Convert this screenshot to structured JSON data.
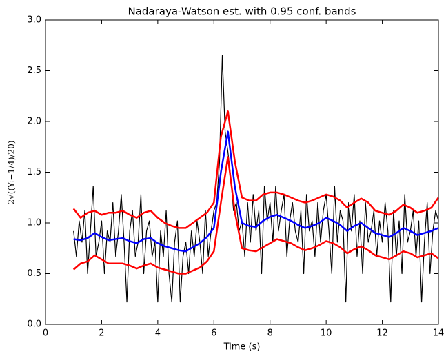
{
  "chart_data": {
    "type": "line",
    "title": "Nadaraya-Watson est. with 0.95 conf. bands",
    "x_label": "Time (s)",
    "y_label": "2√((Yᵢ+1/4)/20)",
    "xlim": [
      0,
      14
    ],
    "ylim": [
      0,
      3
    ],
    "xticks": [
      0,
      2,
      4,
      6,
      8,
      10,
      12,
      14
    ],
    "yticks": [
      {
        "value": 0,
        "label": "0.0"
      },
      {
        "value": 0.5,
        "label": "0.5"
      },
      {
        "value": 1,
        "label": "1.0"
      },
      {
        "value": 1.5,
        "label": "1.5"
      },
      {
        "value": 2,
        "label": "2.0"
      },
      {
        "value": 2.5,
        "label": "2.5"
      },
      {
        "value": 3,
        "label": "3.0"
      }
    ],
    "series": [
      {
        "color": "#000000",
        "width": 1.2,
        "x": [
          1,
          1.1,
          1.2,
          1.3,
          1.4,
          1.5,
          1.6,
          1.7,
          1.8,
          1.9,
          2,
          2.1,
          2.2,
          2.3,
          2.4,
          2.5,
          2.6,
          2.7,
          2.8,
          2.9,
          3,
          3.1,
          3.2,
          3.3,
          3.4,
          3.5,
          3.6,
          3.7,
          3.8,
          3.9,
          4,
          4.1,
          4.2,
          4.3,
          4.4,
          4.5,
          4.6,
          4.7,
          4.8,
          4.9,
          5,
          5.1,
          5.2,
          5.3,
          5.4,
          5.5,
          5.6,
          5.7,
          5.8,
          5.9,
          6,
          6.1,
          6.2,
          6.3,
          6.4,
          6.5,
          6.6,
          6.7,
          6.8,
          6.9,
          7,
          7.1,
          7.2,
          7.3,
          7.4,
          7.5,
          7.6,
          7.7,
          7.8,
          7.9,
          8,
          8.1,
          8.2,
          8.3,
          8.4,
          8.5,
          8.6,
          8.7,
          8.8,
          8.9,
          9,
          9.1,
          9.2,
          9.3,
          9.4,
          9.5,
          9.6,
          9.7,
          9.8,
          9.9,
          10,
          10.1,
          10.2,
          10.3,
          10.4,
          10.5,
          10.6,
          10.7,
          10.8,
          10.9,
          11,
          11.1,
          11.2,
          11.3,
          11.4,
          11.5,
          11.6,
          11.7,
          11.8,
          11.9,
          12,
          12.1,
          12.2,
          12.3,
          12.4,
          12.5,
          12.6,
          12.7,
          12.8,
          12.9,
          13,
          13.1,
          13.2,
          13.3,
          13.4,
          13.5,
          13.6,
          13.7,
          13.8,
          13.9,
          14
        ],
        "values": [
          0.92,
          0.67,
          1.02,
          0.81,
          1.12,
          0.5,
          0.92,
          1.36,
          0.67,
          0.81,
          1.02,
          0.5,
          0.92,
          0.81,
          1.2,
          0.67,
          0.92,
          1.28,
          0.81,
          0.22,
          0.92,
          1.12,
          0.67,
          0.81,
          1.28,
          0.5,
          0.92,
          1.02,
          0.67,
          0.81,
          0.22,
          0.92,
          0.67,
          1.12,
          0.5,
          0.22,
          0.81,
          1.02,
          0.22,
          0.67,
          0.81,
          0.5,
          0.92,
          0.67,
          1.02,
          0.81,
          0.5,
          1.12,
          0.67,
          0.92,
          1.12,
          1.2,
          1.6,
          2.65,
          1.9,
          1.7,
          1.45,
          1.12,
          1.2,
          0.92,
          1.02,
          0.67,
          1.2,
          0.81,
          1.28,
          0.92,
          1.12,
          0.5,
          1.36,
          1.02,
          1.2,
          0.81,
          1.36,
          0.92,
          1.12,
          1.28,
          0.67,
          1.02,
          1.2,
          0.92,
          0.81,
          1.12,
          0.5,
          1.28,
          0.92,
          1.02,
          0.67,
          1.2,
          0.81,
          1.12,
          1.28,
          0.92,
          0.5,
          1.36,
          0.81,
          1.12,
          1.02,
          0.22,
          1.2,
          0.92,
          1.28,
          0.67,
          1.02,
          0.5,
          1.2,
          0.81,
          0.92,
          1.12,
          0.67,
          1.02,
          0.81,
          1.2,
          0.92,
          0.22,
          1.12,
          0.67,
          1.02,
          0.5,
          1.28,
          0.81,
          0.92,
          1.12,
          0.67,
          1.02,
          0.22,
          0.81,
          1.2,
          0.5,
          0.92,
          1.12,
          1.02
        ]
      },
      {
        "color": "#0000ff",
        "width": 2.5,
        "x": [
          1,
          1.25,
          1.5,
          1.75,
          2,
          2.25,
          2.5,
          2.75,
          3,
          3.25,
          3.5,
          3.75,
          4,
          4.25,
          4.5,
          4.75,
          5,
          5.25,
          5.5,
          5.75,
          6,
          6.25,
          6.5,
          6.75,
          7,
          7.25,
          7.5,
          7.75,
          8,
          8.25,
          8.5,
          8.75,
          9,
          9.25,
          9.5,
          9.75,
          10,
          10.25,
          10.5,
          10.75,
          11,
          11.25,
          11.5,
          11.75,
          12,
          12.25,
          12.5,
          12.75,
          13,
          13.25,
          13.5,
          13.75,
          14
        ],
        "values": [
          0.84,
          0.83,
          0.85,
          0.9,
          0.86,
          0.83,
          0.84,
          0.85,
          0.82,
          0.8,
          0.84,
          0.85,
          0.8,
          0.77,
          0.75,
          0.73,
          0.72,
          0.76,
          0.8,
          0.86,
          0.95,
          1.5,
          1.9,
          1.35,
          1.0,
          0.97,
          0.96,
          1.02,
          1.06,
          1.08,
          1.05,
          1.02,
          0.98,
          0.95,
          0.97,
          1.0,
          1.05,
          1.02,
          0.98,
          0.92,
          0.97,
          1.0,
          0.95,
          0.9,
          0.88,
          0.86,
          0.9,
          0.95,
          0.92,
          0.88,
          0.9,
          0.92,
          0.95
        ]
      },
      {
        "color": "#ff0000",
        "width": 2.5,
        "x": [
          1,
          1.25,
          1.5,
          1.75,
          2,
          2.25,
          2.5,
          2.75,
          3,
          3.25,
          3.5,
          3.75,
          4,
          4.25,
          4.5,
          4.75,
          5,
          5.25,
          5.5,
          5.75,
          6,
          6.25,
          6.5,
          6.75,
          7,
          7.25,
          7.5,
          7.75,
          8,
          8.25,
          8.5,
          8.75,
          9,
          9.25,
          9.5,
          9.75,
          10,
          10.25,
          10.5,
          10.75,
          11,
          11.25,
          11.5,
          11.75,
          12,
          12.25,
          12.5,
          12.75,
          13,
          13.25,
          13.5,
          13.75,
          14
        ],
        "values": [
          1.14,
          1.05,
          1.1,
          1.12,
          1.08,
          1.1,
          1.1,
          1.12,
          1.08,
          1.05,
          1.1,
          1.12,
          1.05,
          1.0,
          0.97,
          0.95,
          0.95,
          1.0,
          1.05,
          1.1,
          1.2,
          1.85,
          2.1,
          1.6,
          1.25,
          1.22,
          1.22,
          1.28,
          1.3,
          1.3,
          1.28,
          1.25,
          1.22,
          1.2,
          1.22,
          1.25,
          1.28,
          1.26,
          1.22,
          1.15,
          1.2,
          1.24,
          1.2,
          1.12,
          1.1,
          1.08,
          1.12,
          1.18,
          1.15,
          1.1,
          1.12,
          1.15,
          1.25
        ]
      },
      {
        "color": "#ff0000",
        "width": 2.5,
        "x": [
          1,
          1.25,
          1.5,
          1.75,
          2,
          2.25,
          2.5,
          2.75,
          3,
          3.25,
          3.5,
          3.75,
          4,
          4.25,
          4.5,
          4.75,
          5,
          5.25,
          5.5,
          5.75,
          6,
          6.25,
          6.5,
          6.75,
          7,
          7.25,
          7.5,
          7.75,
          8,
          8.25,
          8.5,
          8.75,
          9,
          9.25,
          9.5,
          9.75,
          10,
          10.25,
          10.5,
          10.75,
          11,
          11.25,
          11.5,
          11.75,
          12,
          12.25,
          12.5,
          12.75,
          13,
          13.25,
          13.5,
          13.75,
          14
        ],
        "values": [
          0.54,
          0.6,
          0.62,
          0.68,
          0.64,
          0.6,
          0.6,
          0.6,
          0.58,
          0.55,
          0.58,
          0.6,
          0.56,
          0.54,
          0.52,
          0.5,
          0.5,
          0.53,
          0.56,
          0.62,
          0.72,
          1.2,
          1.65,
          1.1,
          0.75,
          0.73,
          0.72,
          0.76,
          0.8,
          0.84,
          0.82,
          0.8,
          0.76,
          0.73,
          0.75,
          0.78,
          0.82,
          0.8,
          0.76,
          0.7,
          0.74,
          0.77,
          0.73,
          0.68,
          0.66,
          0.64,
          0.68,
          0.72,
          0.7,
          0.66,
          0.68,
          0.7,
          0.65
        ]
      }
    ]
  }
}
